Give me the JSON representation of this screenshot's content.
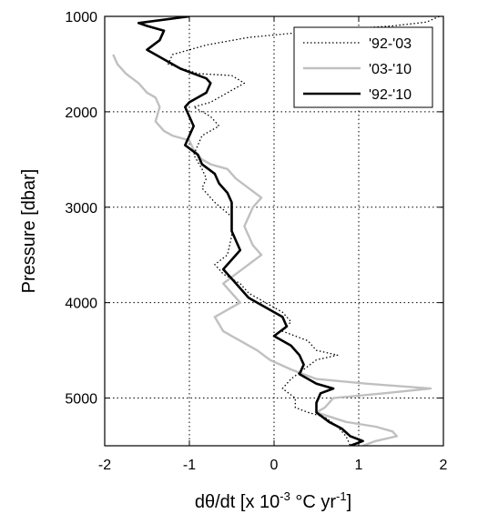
{
  "chart_data": {
    "type": "line",
    "title": "",
    "xlabel": "dθ/dt [x 10",
    "xlabel_exponent": "-3",
    "xlabel_units": " °C yr",
    "xlabel_units_exponent": "-1",
    "xlabel_tail": "]",
    "ylabel": "Pressure [dbar]",
    "xlim": [
      -2,
      2
    ],
    "ylim": [
      1000,
      5500
    ],
    "y_inverted": true,
    "xticks": [
      -2,
      -1,
      0,
      1,
      2
    ],
    "xtick_labels": [
      "-2",
      "-1",
      "0",
      "1",
      "2"
    ],
    "yticks": [
      1000,
      2000,
      3000,
      4000,
      5000
    ],
    "ytick_labels": [
      "1000",
      "2000",
      "3000",
      "4000",
      "5000"
    ],
    "grid": true,
    "legend_position": "top-right",
    "series": [
      {
        "name": "'92-'03",
        "color": "#000000",
        "style": "dotted",
        "points": [
          [
            1.95,
            1000
          ],
          [
            1.8,
            1060
          ],
          [
            1.4,
            1100
          ],
          [
            0.9,
            1130
          ],
          [
            0.3,
            1170
          ],
          [
            -0.3,
            1220
          ],
          [
            -0.8,
            1300
          ],
          [
            -1.2,
            1400
          ],
          [
            -1.25,
            1500
          ],
          [
            -0.9,
            1600
          ],
          [
            -0.5,
            1620
          ],
          [
            -0.35,
            1700
          ],
          [
            -0.55,
            1800
          ],
          [
            -0.75,
            1900
          ],
          [
            -0.95,
            1950
          ],
          [
            -0.75,
            2050
          ],
          [
            -0.65,
            2150
          ],
          [
            -0.85,
            2250
          ],
          [
            -0.9,
            2350
          ],
          [
            -0.95,
            2450
          ],
          [
            -0.85,
            2600
          ],
          [
            -0.8,
            2700
          ],
          [
            -0.85,
            2800
          ],
          [
            -0.7,
            2950
          ],
          [
            -0.5,
            3100
          ],
          [
            -0.5,
            3300
          ],
          [
            -0.55,
            3500
          ],
          [
            -0.7,
            3600
          ],
          [
            -0.6,
            3700
          ],
          [
            -0.4,
            3800
          ],
          [
            -0.3,
            3900
          ],
          [
            -0.1,
            4000
          ],
          [
            0.1,
            4100
          ],
          [
            0.2,
            4200
          ],
          [
            0.1,
            4300
          ],
          [
            0.4,
            4400
          ],
          [
            0.5,
            4500
          ],
          [
            0.75,
            4550
          ],
          [
            0.5,
            4600
          ],
          [
            0.35,
            4700
          ],
          [
            0.2,
            4800
          ],
          [
            0.1,
            4900
          ],
          [
            0.25,
            5000
          ],
          [
            0.25,
            5100
          ],
          [
            0.4,
            5150
          ],
          [
            0.6,
            5200
          ],
          [
            0.75,
            5300
          ],
          [
            0.85,
            5400
          ],
          [
            0.9,
            5500
          ]
        ]
      },
      {
        "name": "'03-'10",
        "color": "#c0c0c0",
        "style": "solid",
        "points": [
          [
            -1.9,
            1400
          ],
          [
            -1.85,
            1500
          ],
          [
            -1.75,
            1600
          ],
          [
            -1.6,
            1700
          ],
          [
            -1.5,
            1800
          ],
          [
            -1.4,
            1850
          ],
          [
            -1.35,
            1950
          ],
          [
            -1.4,
            2100
          ],
          [
            -1.3,
            2200
          ],
          [
            -1.2,
            2250
          ],
          [
            -1.0,
            2300
          ],
          [
            -0.95,
            2400
          ],
          [
            -0.85,
            2500
          ],
          [
            -0.75,
            2550
          ],
          [
            -0.55,
            2600
          ],
          [
            -0.45,
            2700
          ],
          [
            -0.3,
            2800
          ],
          [
            -0.15,
            2900
          ],
          [
            -0.25,
            3000
          ],
          [
            -0.3,
            3100
          ],
          [
            -0.35,
            3200
          ],
          [
            -0.3,
            3300
          ],
          [
            -0.25,
            3400
          ],
          [
            -0.15,
            3500
          ],
          [
            -0.3,
            3600
          ],
          [
            -0.45,
            3700
          ],
          [
            -0.6,
            3800
          ],
          [
            -0.5,
            3900
          ],
          [
            -0.4,
            4000
          ],
          [
            -0.7,
            4150
          ],
          [
            -0.6,
            4300
          ],
          [
            -0.4,
            4400
          ],
          [
            -0.2,
            4500
          ],
          [
            -0.05,
            4600
          ],
          [
            0.2,
            4700
          ],
          [
            0.5,
            4800
          ],
          [
            1.1,
            4850
          ],
          [
            1.85,
            4900
          ],
          [
            1.3,
            4950
          ],
          [
            0.7,
            5000
          ],
          [
            0.6,
            5100
          ],
          [
            0.5,
            5150
          ],
          [
            0.85,
            5250
          ],
          [
            1.2,
            5300
          ],
          [
            1.4,
            5350
          ],
          [
            1.45,
            5400
          ],
          [
            1.2,
            5450
          ],
          [
            1.05,
            5500
          ]
        ]
      },
      {
        "name": "'92-'10",
        "color": "#000000",
        "style": "solid-thick",
        "points": [
          [
            -1.0,
            1000
          ],
          [
            -1.6,
            1070
          ],
          [
            -1.5,
            1100
          ],
          [
            -1.3,
            1150
          ],
          [
            -1.35,
            1250
          ],
          [
            -1.5,
            1350
          ],
          [
            -1.3,
            1450
          ],
          [
            -1.1,
            1550
          ],
          [
            -0.8,
            1650
          ],
          [
            -0.75,
            1700
          ],
          [
            -0.8,
            1800
          ],
          [
            -1.0,
            1900
          ],
          [
            -1.05,
            1950
          ],
          [
            -1.0,
            2050
          ],
          [
            -0.95,
            2150
          ],
          [
            -1.0,
            2250
          ],
          [
            -1.05,
            2350
          ],
          [
            -0.9,
            2450
          ],
          [
            -0.85,
            2550
          ],
          [
            -0.7,
            2650
          ],
          [
            -0.65,
            2750
          ],
          [
            -0.55,
            2850
          ],
          [
            -0.5,
            2950
          ],
          [
            -0.5,
            3050
          ],
          [
            -0.5,
            3150
          ],
          [
            -0.5,
            3250
          ],
          [
            -0.45,
            3350
          ],
          [
            -0.4,
            3450
          ],
          [
            -0.5,
            3550
          ],
          [
            -0.6,
            3650
          ],
          [
            -0.5,
            3750
          ],
          [
            -0.4,
            3850
          ],
          [
            -0.3,
            3950
          ],
          [
            -0.1,
            4050
          ],
          [
            0.1,
            4150
          ],
          [
            0.15,
            4250
          ],
          [
            0.0,
            4350
          ],
          [
            0.2,
            4450
          ],
          [
            0.3,
            4550
          ],
          [
            0.35,
            4650
          ],
          [
            0.3,
            4750
          ],
          [
            0.5,
            4850
          ],
          [
            0.7,
            4900
          ],
          [
            0.55,
            4950
          ],
          [
            0.5,
            5050
          ],
          [
            0.5,
            5150
          ],
          [
            0.65,
            5250
          ],
          [
            0.8,
            5320
          ],
          [
            0.9,
            5400
          ],
          [
            1.05,
            5450
          ],
          [
            0.9,
            5500
          ]
        ]
      }
    ]
  }
}
